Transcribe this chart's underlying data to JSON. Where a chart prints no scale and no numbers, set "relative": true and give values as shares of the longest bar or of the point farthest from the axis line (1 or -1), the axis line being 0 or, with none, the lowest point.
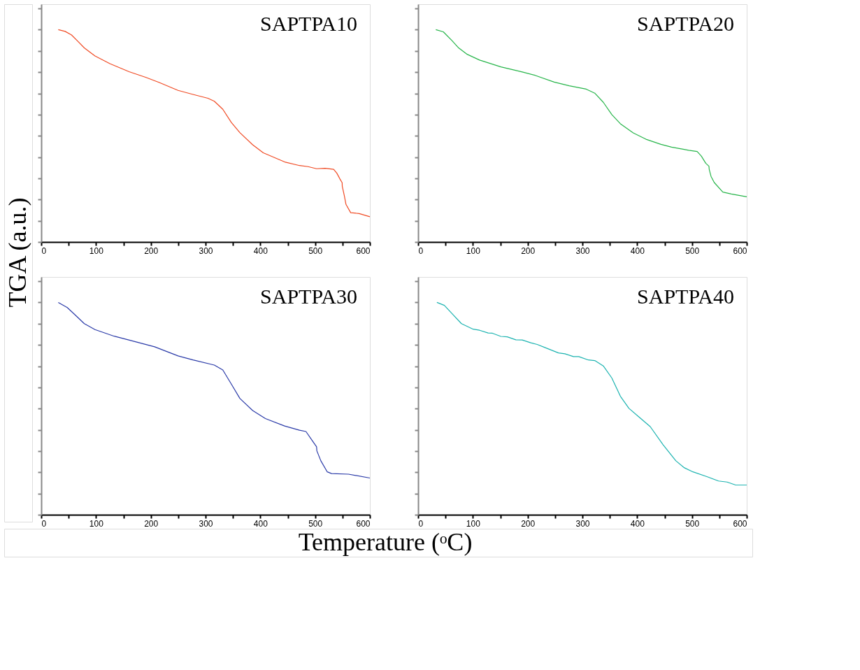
{
  "chart_data": [
    {
      "type": "line",
      "relative": true,
      "ylabel": "TGA (a.u.)",
      "xlim": [
        0,
        600
      ],
      "xticks": [
        0,
        {
          "value": 50,
          "label": null
        },
        100,
        {
          "value": 150,
          "label": null
        },
        200,
        {
          "value": 250,
          "label": null
        },
        300,
        {
          "value": 350,
          "label": null
        },
        400,
        {
          "value": 450,
          "label": null
        },
        500,
        {
          "value": 550,
          "label": null
        },
        600
      ],
      "tick_labels": "x",
      "grid": false,
      "series": [
        {
          "name": "SAPTPA10",
          "color": "#f04a23",
          "x": [
            31.1,
            43.6,
            55.3,
            66.9,
            78.6,
            98.1,
            125.3,
            160.3,
            191.4,
            214.8,
            249.8,
            277,
            304.3,
            316,
            331.5,
            347.1,
            362.6,
            386,
            405.4,
            444.4,
            471.6,
            487.2,
            502.7,
            518.3,
            533.9,
            539.7,
            545.5,
            549.4,
            549.6,
            553.3,
            556.4,
            565,
            580.5,
            600
          ],
          "values": [
            1.0,
            0.992,
            0.975,
            0.945,
            0.914,
            0.876,
            0.84,
            0.802,
            0.775,
            0.752,
            0.714,
            0.695,
            0.677,
            0.663,
            0.625,
            0.563,
            0.515,
            0.458,
            0.42,
            0.377,
            0.36,
            0.355,
            0.345,
            0.347,
            0.342,
            0.324,
            0.296,
            0.279,
            0.262,
            0.219,
            0.177,
            0.138,
            0.134,
            0.119
          ]
        }
      ]
    },
    {
      "type": "line",
      "relative": true,
      "xlim": [
        0,
        600
      ],
      "xticks": [
        0,
        {
          "value": 50,
          "label": null
        },
        100,
        {
          "value": 150,
          "label": null
        },
        200,
        {
          "value": 250,
          "label": null
        },
        300,
        {
          "value": 350,
          "label": null
        },
        400,
        {
          "value": 450,
          "label": null
        },
        500,
        {
          "value": 550,
          "label": null
        },
        600
      ],
      "tick_labels": "x",
      "grid": false,
      "series": [
        {
          "name": "SAPTPA20",
          "color": "#27b54a",
          "x": [
            32.3,
            46,
            61.6,
            73.2,
            88.8,
            112.2,
            151.1,
            190.1,
            213.5,
            248.5,
            275.8,
            306.9,
            322.5,
            338.1,
            353.7,
            369.3,
            392.7,
            416,
            443.3,
            462.8,
            482.3,
            494,
            509.5,
            517.3,
            525.1,
            531,
            531.5,
            534.8,
            540.7,
            556.3,
            571.9,
            600
          ],
          "values": [
            1.0,
            0.99,
            0.949,
            0.916,
            0.885,
            0.857,
            0.825,
            0.801,
            0.785,
            0.753,
            0.736,
            0.72,
            0.701,
            0.658,
            0.6,
            0.557,
            0.514,
            0.484,
            0.46,
            0.447,
            0.438,
            0.432,
            0.426,
            0.404,
            0.371,
            0.357,
            0.342,
            0.309,
            0.28,
            0.235,
            0.226,
            0.213
          ]
        }
      ]
    },
    {
      "type": "line",
      "relative": true,
      "xlabel": "Temperature (ᵒC)",
      "xlim": [
        0,
        600
      ],
      "xticks": [
        0,
        {
          "value": 50,
          "label": null
        },
        100,
        {
          "value": 150,
          "label": null
        },
        200,
        {
          "value": 250,
          "label": null
        },
        300,
        {
          "value": 350,
          "label": null
        },
        400,
        {
          "value": 450,
          "label": null
        },
        500,
        {
          "value": 550,
          "label": null
        },
        600
      ],
      "tick_labels": "x",
      "grid": false,
      "series": [
        {
          "name": "SAPTPA30",
          "color": "#2a3aa8",
          "x": [
            31.1,
            47.5,
            59.1,
            78.6,
            98.1,
            133.1,
            172,
            207,
            249.8,
            277,
            316,
            331.5,
            347.1,
            362.6,
            386,
            409.3,
            444.4,
            471.6,
            483.3,
            494.9,
            502.7,
            503.2,
            510.5,
            522.2,
            530,
            561.1,
            600
          ],
          "values": [
            1.0,
            0.976,
            0.948,
            0.9,
            0.872,
            0.841,
            0.815,
            0.791,
            0.748,
            0.729,
            0.705,
            0.682,
            0.615,
            0.548,
            0.491,
            0.453,
            0.418,
            0.398,
            0.392,
            0.349,
            0.32,
            0.301,
            0.254,
            0.202,
            0.194,
            0.191,
            0.173
          ]
        }
      ]
    },
    {
      "type": "line",
      "relative": true,
      "xlim": [
        0,
        600
      ],
      "xticks": [
        0,
        {
          "value": 50,
          "label": null
        },
        100,
        {
          "value": 150,
          "label": null
        },
        200,
        {
          "value": 250,
          "label": null
        },
        300,
        {
          "value": 350,
          "label": null
        },
        400,
        {
          "value": 450,
          "label": null
        },
        500,
        {
          "value": 550,
          "label": null
        },
        600
      ],
      "tick_labels": "x",
      "grid": false,
      "series": [
        {
          "name": "SAPTPA40",
          "color": "#1cb3b0",
          "x": [
            34.3,
            47.9,
            61.6,
            79.1,
            100.5,
            112.2,
            127.8,
            135.6,
            151.1,
            162.8,
            178.4,
            190.1,
            205.7,
            217.4,
            233,
            256.3,
            268,
            283.6,
            293.3,
            310.9,
            322.6,
            338.1,
            353.7,
            369.3,
            384.9,
            404.4,
            423.8,
            447.2,
            470.6,
            486.2,
            501.8,
            529,
            548.5,
            564.1,
            579.7,
            600
          ],
          "values": [
            1.0,
            0.986,
            0.948,
            0.9,
            0.874,
            0.869,
            0.856,
            0.855,
            0.84,
            0.838,
            0.824,
            0.823,
            0.81,
            0.802,
            0.786,
            0.762,
            0.758,
            0.745,
            0.745,
            0.729,
            0.726,
            0.701,
            0.644,
            0.558,
            0.501,
            0.458,
            0.415,
            0.33,
            0.254,
            0.221,
            0.202,
            0.178,
            0.159,
            0.154,
            0.14,
            0.14
          ]
        }
      ]
    }
  ]
}
